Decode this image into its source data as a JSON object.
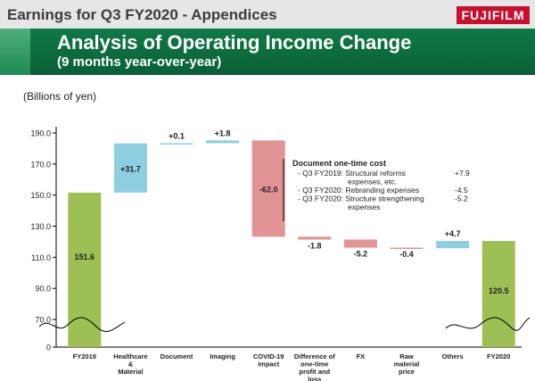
{
  "header": {
    "title": "Earnings for Q3 FY2020 - Appendices",
    "logo": "FUJIFILM",
    "heading": "Analysis of Operating Income Change",
    "subheading": "(9 months year-over-year)"
  },
  "colors": {
    "header_green": "#0a5f37",
    "total_bar": "#9dbf54",
    "increase_bar": "#8dcfe0",
    "decrease_bar": "#e29393",
    "logo_red": "#c8102e"
  },
  "chart_data": {
    "type": "bar",
    "subtype": "waterfall",
    "units_label": "(Billions of yen)",
    "y_ticks": [
      "190.0",
      "170.0",
      "150.0",
      "130.0",
      "110.0",
      "90.0",
      "70.0",
      "0"
    ],
    "ylim": [
      70,
      190
    ],
    "axis_break": true,
    "categories": [
      [
        "FY2019"
      ],
      [
        "Healthcare",
        "&",
        "Material"
      ],
      [
        "Document"
      ],
      [
        "Imaging"
      ],
      [
        "COVID-19",
        "impact"
      ],
      [
        "Difference of",
        "one-time",
        "profit and",
        "loss"
      ],
      [
        "FX"
      ],
      [
        "Raw",
        "material",
        "price"
      ],
      [
        "Others"
      ],
      [
        "FY2020"
      ]
    ],
    "bars": [
      {
        "kind": "total",
        "start": 0,
        "end": 151.6,
        "label": "151.6"
      },
      {
        "kind": "increase",
        "start": 151.6,
        "end": 183.3,
        "label": "+31.7"
      },
      {
        "kind": "increase",
        "start": 183.3,
        "end": 183.4,
        "label": "+0.1"
      },
      {
        "kind": "increase",
        "start": 183.4,
        "end": 185.2,
        "label": "+1.8"
      },
      {
        "kind": "decrease",
        "start": 185.2,
        "end": 123.2,
        "label": "-62.0"
      },
      {
        "kind": "decrease",
        "start": 123.2,
        "end": 121.4,
        "label": "-1.8"
      },
      {
        "kind": "decrease",
        "start": 121.4,
        "end": 116.2,
        "label": "-5.2"
      },
      {
        "kind": "decrease",
        "start": 116.2,
        "end": 115.8,
        "label": "-0.4"
      },
      {
        "kind": "increase",
        "start": 115.8,
        "end": 120.5,
        "label": "+4.7"
      },
      {
        "kind": "total",
        "start": 0,
        "end": 120.5,
        "label": "120.5"
      }
    ],
    "annotation": {
      "title": "Document one-time cost",
      "lines": [
        {
          "text": "- Q3 FY2019: Structural reforms",
          "value": "+7.9"
        },
        {
          "text": "expenses, etc.",
          "value": ""
        },
        {
          "text": "- Q3 FY2020: Rebranding expenses",
          "value": "-4.5"
        },
        {
          "text": "- Q3 FY2020: Structure strengthening",
          "value": "-5.2"
        },
        {
          "text": "expenses",
          "value": ""
        }
      ]
    }
  }
}
